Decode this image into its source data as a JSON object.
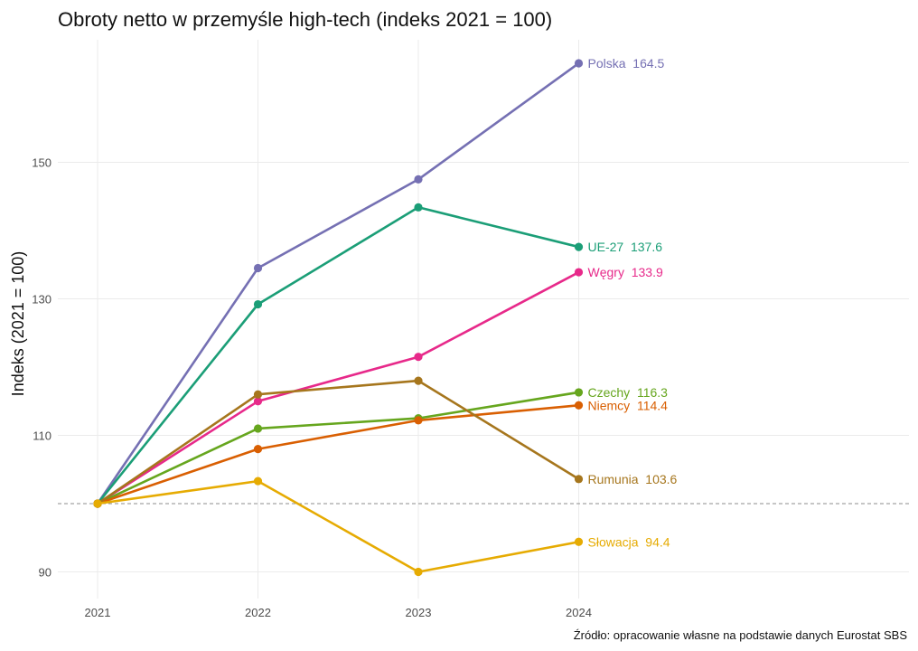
{
  "chart_data": {
    "type": "line",
    "title": "Obroty netto w przemyśle high-tech (indeks 2021 = 100)",
    "ylabel": "Indeks (2021 = 100)",
    "xlabel": "",
    "caption": "Źródło: opracowanie własne na podstawie danych Eurostat SBS",
    "x": [
      2021,
      2022,
      2023,
      2024
    ],
    "x_tick_labels": [
      "2021",
      "2022",
      "2023",
      "2024"
    ],
    "xlim": [
      2021,
      2026.7
    ],
    "ylim": [
      88,
      170
    ],
    "y_ticks": [
      90,
      110,
      130,
      150
    ],
    "reference_line": 100,
    "grid": true,
    "legend": "none (direct labels at line ends)",
    "series": [
      {
        "name": "Polska",
        "values": [
          100,
          134.5,
          147.5,
          164.5
        ],
        "label_value": "164.5",
        "color": "#7570b3"
      },
      {
        "name": "UE-27",
        "values": [
          100,
          129.2,
          143.4,
          137.6
        ],
        "label_value": "137.6",
        "color": "#1b9e77"
      },
      {
        "name": "Węgry",
        "values": [
          100,
          115.0,
          121.5,
          133.9
        ],
        "label_value": "133.9",
        "color": "#e7298a"
      },
      {
        "name": "Czechy",
        "values": [
          100,
          111.0,
          112.5,
          116.3
        ],
        "label_value": "116.3",
        "color": "#66a61e"
      },
      {
        "name": "Niemcy",
        "values": [
          100,
          108.0,
          112.2,
          114.4
        ],
        "label_value": "114.4",
        "color": "#d95f02"
      },
      {
        "name": "Rumunia",
        "values": [
          100,
          116.0,
          118.0,
          103.6
        ],
        "label_value": "103.6",
        "color": "#a6761d"
      },
      {
        "name": "Słowacja",
        "values": [
          100,
          103.3,
          90.0,
          94.4
        ],
        "label_value": "94.4",
        "color": "#e6ab02"
      }
    ]
  }
}
